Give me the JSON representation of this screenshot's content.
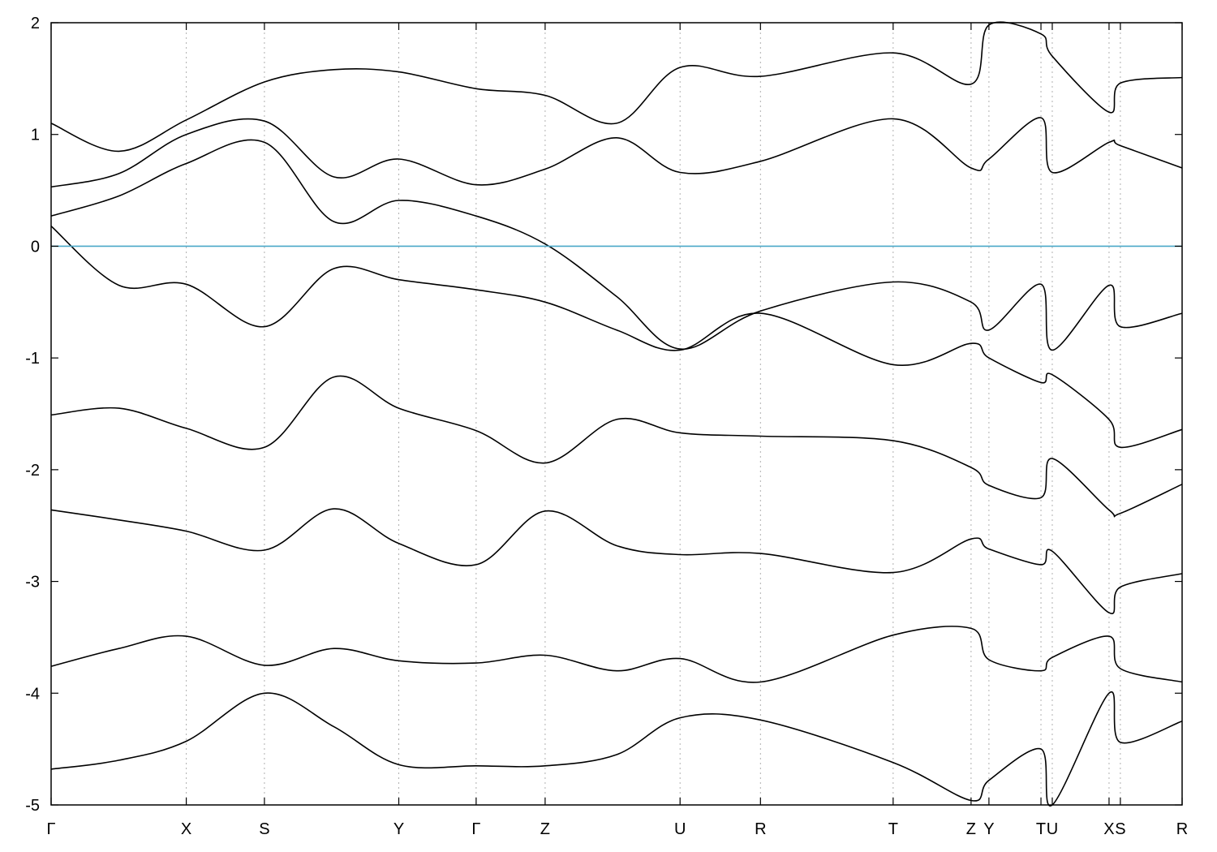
{
  "chart_data": {
    "type": "line",
    "title": "",
    "xlabel": "",
    "ylabel": "",
    "ylim": [
      -5,
      2
    ],
    "yticks": [
      -5,
      -4,
      -3,
      -2,
      -1,
      0,
      1,
      2
    ],
    "ytick_labels": [
      "-5",
      "-4",
      "-3",
      "-2",
      "-1",
      "0",
      "1",
      "2"
    ],
    "xlim": [
      0,
      1
    ],
    "xticks": [
      {
        "label": "Γ",
        "x": 0.0
      },
      {
        "label": "X",
        "x": 0.1195
      },
      {
        "label": "S",
        "x": 0.1886
      },
      {
        "label": "Y",
        "x": 0.3074
      },
      {
        "label": "Γ",
        "x": 0.3758
      },
      {
        "label": "Z",
        "x": 0.4368
      },
      {
        "label": "U",
        "x": 0.5561
      },
      {
        "label": "R",
        "x": 0.6272
      },
      {
        "label": "T",
        "x": 0.7445
      },
      {
        "label": "Z",
        "x": 0.8134
      },
      {
        "label": "Y",
        "x": 0.8292
      },
      {
        "label": "T",
        "x": 0.8752
      },
      {
        "label": "U",
        "x": 0.8852
      },
      {
        "label": "X",
        "x": 0.9354
      },
      {
        "label": "S",
        "x": 0.9454
      },
      {
        "label": "R",
        "x": 1.0
      }
    ],
    "grid": "vertical dotted lines at high-symmetry points",
    "fermi_level": 0,
    "colors": {
      "bands": "#000000",
      "fermi": "#4aa8c8",
      "grid": "#b0b0b0",
      "frame": "#000000"
    },
    "series": [
      {
        "x": [
          0,
          0.06,
          0.1195,
          0.1886,
          0.25,
          0.3074,
          0.3758,
          0.4368,
          0.5,
          0.5561,
          0.6272,
          0.7445,
          0.8134,
          0.8292,
          0.8752,
          0.8852,
          0.9354,
          0.9454,
          1.0
        ],
        "y": [
          0.18,
          -0.35,
          -0.34,
          -0.72,
          -0.2,
          -0.3,
          -0.39,
          -0.5,
          -0.75,
          -0.93,
          -0.6,
          -1.06,
          -0.87,
          -1.0,
          -1.22,
          -1.15,
          -1.55,
          -1.8,
          -1.64
        ]
      },
      {
        "x": [
          0,
          0.06,
          0.1195,
          0.1886,
          0.25,
          0.3074,
          0.3758,
          0.4368,
          0.5,
          0.5561,
          0.6272,
          0.7445,
          0.8134,
          0.8292,
          0.8752,
          0.8852,
          0.9354,
          0.9454,
          1.0
        ],
        "y": [
          0.27,
          0.45,
          0.74,
          0.93,
          0.22,
          0.41,
          0.27,
          0.02,
          -0.45,
          -0.92,
          -0.58,
          -0.32,
          -0.5,
          -0.75,
          -0.34,
          -0.93,
          -0.35,
          -0.72,
          -0.6
        ]
      },
      {
        "x": [
          0,
          0.06,
          0.1195,
          0.1886,
          0.25,
          0.3074,
          0.3758,
          0.4368,
          0.5,
          0.5561,
          0.6272,
          0.7445,
          0.8134,
          0.8292,
          0.8752,
          0.8852,
          0.9354,
          0.9454,
          1.0
        ],
        "y": [
          0.53,
          0.65,
          1.0,
          1.12,
          0.62,
          0.78,
          0.55,
          0.69,
          0.97,
          0.66,
          0.76,
          1.14,
          0.7,
          0.78,
          1.15,
          0.66,
          0.93,
          0.9,
          0.7
        ]
      },
      {
        "x": [
          0,
          0.06,
          0.1195,
          0.1886,
          0.25,
          0.3074,
          0.3758,
          0.4368,
          0.5,
          0.5561,
          0.6272,
          0.7445,
          0.8134,
          0.8292,
          0.8752,
          0.8852,
          0.9354,
          0.9454,
          1.0
        ],
        "y": [
          1.1,
          0.85,
          1.13,
          1.47,
          1.58,
          1.56,
          1.41,
          1.35,
          1.1,
          1.6,
          1.52,
          1.73,
          1.45,
          1.98,
          1.9,
          1.7,
          1.2,
          1.46,
          1.51
        ]
      },
      {
        "x": [
          0,
          0.06,
          0.1195,
          0.1886,
          0.25,
          0.3074,
          0.3758,
          0.4368,
          0.5,
          0.5561,
          0.6272,
          0.7445,
          0.8134,
          0.8292,
          0.8752,
          0.8852,
          0.9354,
          0.9454,
          1.0
        ],
        "y": [
          -1.51,
          -1.45,
          -1.63,
          -1.8,
          -1.17,
          -1.45,
          -1.65,
          -1.94,
          -1.55,
          -1.67,
          -1.7,
          -1.74,
          -1.98,
          -2.14,
          -2.25,
          -1.9,
          -2.36,
          -2.39,
          -2.13
        ]
      },
      {
        "x": [
          0,
          0.06,
          0.1195,
          0.1886,
          0.25,
          0.3074,
          0.3758,
          0.4368,
          0.5,
          0.5561,
          0.6272,
          0.7445,
          0.8134,
          0.8292,
          0.8752,
          0.8852,
          0.9354,
          0.9454,
          1.0
        ],
        "y": [
          -2.36,
          -2.45,
          -2.55,
          -2.72,
          -2.35,
          -2.66,
          -2.85,
          -2.37,
          -2.68,
          -2.76,
          -2.75,
          -2.92,
          -2.62,
          -2.71,
          -2.85,
          -2.73,
          -3.28,
          -3.05,
          -2.93
        ]
      },
      {
        "x": [
          0,
          0.06,
          0.1195,
          0.1886,
          0.25,
          0.3074,
          0.3758,
          0.4368,
          0.5,
          0.5561,
          0.6272,
          0.7445,
          0.8134,
          0.8292,
          0.8752,
          0.8852,
          0.9354,
          0.9454,
          1.0
        ],
        "y": [
          -3.76,
          -3.6,
          -3.49,
          -3.75,
          -3.6,
          -3.71,
          -3.73,
          -3.66,
          -3.8,
          -3.69,
          -3.9,
          -3.48,
          -3.42,
          -3.7,
          -3.8,
          -3.68,
          -3.49,
          -3.78,
          -3.9
        ]
      },
      {
        "x": [
          0,
          0.06,
          0.1195,
          0.1886,
          0.25,
          0.3074,
          0.3758,
          0.4368,
          0.5,
          0.5561,
          0.6272,
          0.7445,
          0.8134,
          0.8292,
          0.8752,
          0.8852,
          0.9354,
          0.9454,
          1.0
        ],
        "y": [
          -4.68,
          -4.6,
          -4.43,
          -4.0,
          -4.3,
          -4.64,
          -4.65,
          -4.65,
          -4.55,
          -4.22,
          -4.24,
          -4.62,
          -4.96,
          -4.78,
          -4.5,
          -5.0,
          -4.0,
          -4.44,
          -4.25
        ]
      }
    ]
  }
}
